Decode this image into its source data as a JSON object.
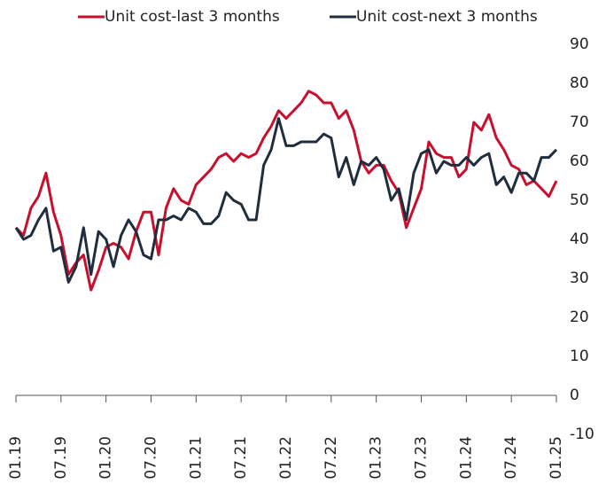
{
  "chart_data": {
    "type": "line",
    "categories": [
      "01.19",
      null,
      null,
      null,
      null,
      null,
      "07.19",
      null,
      null,
      null,
      null,
      null,
      "01.20",
      null,
      null,
      null,
      null,
      null,
      "07.20",
      null,
      null,
      null,
      null,
      null,
      "01.21",
      null,
      null,
      null,
      null,
      null,
      "07.21",
      null,
      null,
      null,
      null,
      null,
      "01.22",
      null,
      null,
      null,
      null,
      null,
      "07.22",
      null,
      null,
      null,
      null,
      null,
      "01.23",
      null,
      null,
      null,
      null,
      null,
      "07.23",
      null,
      null,
      null,
      null,
      null,
      "01.24",
      null,
      null,
      null,
      null,
      null,
      "07.24",
      null,
      null,
      null,
      null,
      null,
      "01.25"
    ],
    "series": [
      {
        "name": "Unit cost-last 3 months",
        "color": "#c8102e",
        "values": [
          43,
          41,
          48,
          51,
          57,
          47,
          41,
          31,
          34,
          36,
          27,
          32,
          38,
          39,
          38,
          35,
          42,
          47,
          47,
          36,
          48,
          53,
          50,
          49,
          54,
          56,
          58,
          61,
          62,
          60,
          62,
          61,
          62,
          66,
          69,
          73,
          71,
          73,
          75,
          78,
          77,
          75,
          75,
          71,
          73,
          68,
          60,
          57,
          59,
          59,
          55,
          52,
          43,
          48,
          53,
          65,
          62,
          61,
          61,
          56,
          58,
          70,
          68,
          72,
          66,
          63,
          59,
          58,
          54,
          55,
          53,
          51,
          55
        ]
      },
      {
        "name": "Unit cost-next 3 months",
        "color": "#1f2d3d",
        "values": [
          43,
          40,
          41,
          45,
          48,
          37,
          38,
          29,
          33,
          43,
          31,
          42,
          40,
          33,
          41,
          45,
          42,
          36,
          35,
          45,
          45,
          46,
          45,
          48,
          47,
          44,
          44,
          46,
          52,
          50,
          49,
          45,
          45,
          59,
          63,
          71,
          64,
          64,
          65,
          65,
          65,
          67,
          66,
          56,
          61,
          54,
          60,
          59,
          61,
          58,
          50,
          53,
          45,
          57,
          62,
          63,
          57,
          60,
          59,
          59,
          61,
          59,
          61,
          62,
          54,
          56,
          52,
          57,
          57,
          55,
          61,
          61,
          63
        ]
      }
    ],
    "ylim": [
      -10,
      90
    ],
    "yticks": [
      -10,
      0,
      10,
      20,
      30,
      40,
      50,
      60,
      70,
      80,
      90
    ],
    "legend": "top"
  }
}
